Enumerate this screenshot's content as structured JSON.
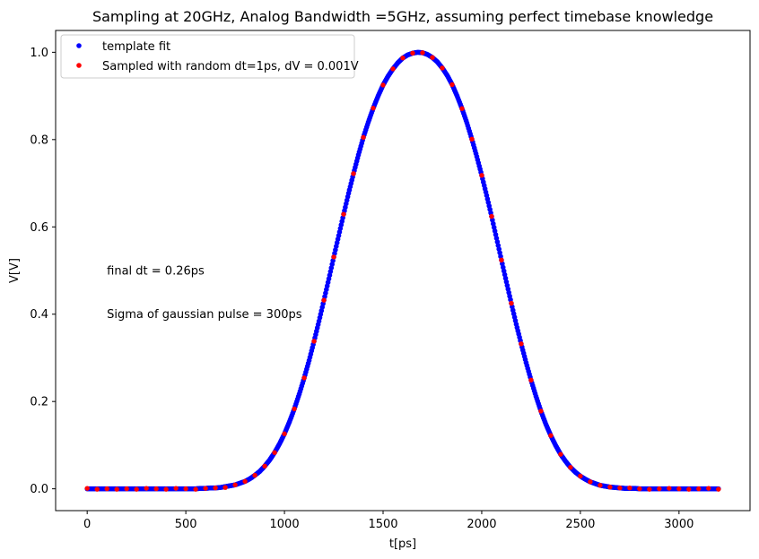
{
  "chart_data": {
    "type": "scatter",
    "title": "Sampling at 20GHz, Analog Bandwidth =5GHz, assuming perfect timebase knowledge",
    "xlabel": "t[ps]",
    "ylabel": "V[V]",
    "xlim": [
      -160,
      3360
    ],
    "ylim": [
      -0.05,
      1.05
    ],
    "xticks": [
      0,
      500,
      1000,
      1500,
      2000,
      2500,
      3000
    ],
    "yticks": [
      0.0,
      0.2,
      0.4,
      0.6,
      0.8,
      1.0
    ],
    "xtick_labels": [
      "0",
      "500",
      "1000",
      "1500",
      "2000",
      "2500",
      "3000"
    ],
    "ytick_labels": [
      "0.0",
      "0.2",
      "0.4",
      "0.6",
      "0.8",
      "1.0"
    ],
    "grid": false,
    "legend_position": "top-left",
    "series": [
      {
        "name": "template fit",
        "color": "#0000ff",
        "marker": "dot",
        "x": [
          0,
          25,
          50,
          75,
          100,
          125,
          150,
          175,
          200,
          225,
          250,
          275,
          300,
          325,
          350,
          375,
          400,
          425,
          450,
          475,
          500,
          525,
          550,
          575,
          600,
          625,
          650,
          675,
          700,
          725,
          750,
          775,
          800,
          825,
          850,
          875,
          900,
          925,
          950,
          975,
          1000,
          1025,
          1050,
          1075,
          1100,
          1125,
          1150,
          1175,
          1200,
          1225,
          1250,
          1275,
          1300,
          1325,
          1350,
          1375,
          1400,
          1425,
          1450,
          1475,
          1500,
          1525,
          1550,
          1575,
          1600,
          1625,
          1650,
          1675,
          1700,
          1725,
          1750,
          1775,
          1800,
          1825,
          1850,
          1875,
          1900,
          1925,
          1950,
          1975,
          2000,
          2025,
          2050,
          2075,
          2100,
          2125,
          2150,
          2175,
          2200,
          2225,
          2250,
          2275,
          2300,
          2325,
          2350,
          2375,
          2400,
          2425,
          2450,
          2475,
          2500,
          2525,
          2550,
          2575,
          2600,
          2625,
          2650,
          2675,
          2700,
          2725,
          2750,
          2775,
          2800,
          2825,
          2850,
          2875,
          2900,
          2925,
          2950,
          2975,
          3000,
          3025,
          3050,
          3075,
          3100,
          3125,
          3150,
          3175,
          3200
        ],
        "y": [
          0.0,
          0.0,
          0.0,
          0.0,
          0.0,
          0.0,
          0.0,
          0.0,
          0.0,
          0.0,
          0.0,
          0.0,
          0.0,
          0.0,
          0.0,
          0.0,
          0.0,
          0.0,
          0.0,
          0.0,
          0.0,
          0.0,
          0.0,
          0.001,
          0.001,
          0.002,
          0.002,
          0.003,
          0.005,
          0.007,
          0.009,
          0.013,
          0.017,
          0.023,
          0.031,
          0.04,
          0.052,
          0.066,
          0.083,
          0.103,
          0.126,
          0.153,
          0.183,
          0.217,
          0.254,
          0.294,
          0.338,
          0.384,
          0.432,
          0.481,
          0.531,
          0.58,
          0.629,
          0.677,
          0.722,
          0.765,
          0.805,
          0.84,
          0.872,
          0.9,
          0.925,
          0.945,
          0.962,
          0.976,
          0.987,
          0.994,
          0.998,
          1.0,
          0.999,
          0.995,
          0.988,
          0.978,
          0.964,
          0.947,
          0.926,
          0.9,
          0.871,
          0.838,
          0.801,
          0.761,
          0.718,
          0.672,
          0.624,
          0.574,
          0.524,
          0.474,
          0.425,
          0.377,
          0.332,
          0.289,
          0.249,
          0.212,
          0.178,
          0.148,
          0.122,
          0.099,
          0.079,
          0.063,
          0.049,
          0.038,
          0.029,
          0.022,
          0.016,
          0.012,
          0.008,
          0.006,
          0.004,
          0.003,
          0.002,
          0.001,
          0.001,
          0.001,
          0.0,
          0.0,
          0.0,
          0.0,
          0.0,
          0.0,
          0.0,
          0.0,
          0.0,
          0.0,
          0.0,
          0.0,
          0.0,
          0.0,
          0.0,
          0.0,
          0.0
        ]
      },
      {
        "name": "Sampled with random dt=1ps, dV = 0.001V",
        "color": "#ff0000",
        "marker": "dot",
        "x": [
          0,
          50,
          100,
          150,
          200,
          250,
          300,
          350,
          400,
          450,
          500,
          550,
          600,
          650,
          700,
          750,
          800,
          850,
          900,
          950,
          1000,
          1050,
          1100,
          1150,
          1200,
          1250,
          1300,
          1350,
          1400,
          1450,
          1500,
          1550,
          1600,
          1650,
          1700,
          1750,
          1800,
          1850,
          1900,
          1950,
          2000,
          2050,
          2100,
          2150,
          2200,
          2250,
          2300,
          2350,
          2400,
          2450,
          2500,
          2550,
          2600,
          2650,
          2700,
          2750,
          2800,
          2850,
          2900,
          2950,
          3000,
          3050,
          3100,
          3150,
          3200
        ],
        "y": [
          0.001,
          -0.001,
          0.0,
          -0.001,
          0.0,
          -0.001,
          0.001,
          0.0,
          -0.001,
          0.001,
          0.0,
          -0.001,
          0.001,
          0.002,
          0.003,
          0.009,
          0.017,
          0.031,
          0.052,
          0.083,
          0.126,
          0.183,
          0.254,
          0.338,
          0.432,
          0.531,
          0.629,
          0.722,
          0.805,
          0.872,
          0.925,
          0.962,
          0.987,
          0.998,
          0.999,
          0.988,
          0.964,
          0.926,
          0.871,
          0.801,
          0.718,
          0.624,
          0.524,
          0.425,
          0.332,
          0.249,
          0.178,
          0.122,
          0.079,
          0.049,
          0.029,
          0.016,
          0.008,
          0.004,
          0.002,
          0.002,
          0.0,
          -0.001,
          0.0,
          0.001,
          0.0,
          -0.001,
          0.0,
          0.001,
          -0.001
        ]
      }
    ],
    "annotations": [
      {
        "text": "final dt = 0.26ps",
        "x": 100,
        "y": 0.5
      },
      {
        "text": "Sigma of gaussian pulse = 300ps",
        "x": 100,
        "y": 0.4
      }
    ]
  }
}
